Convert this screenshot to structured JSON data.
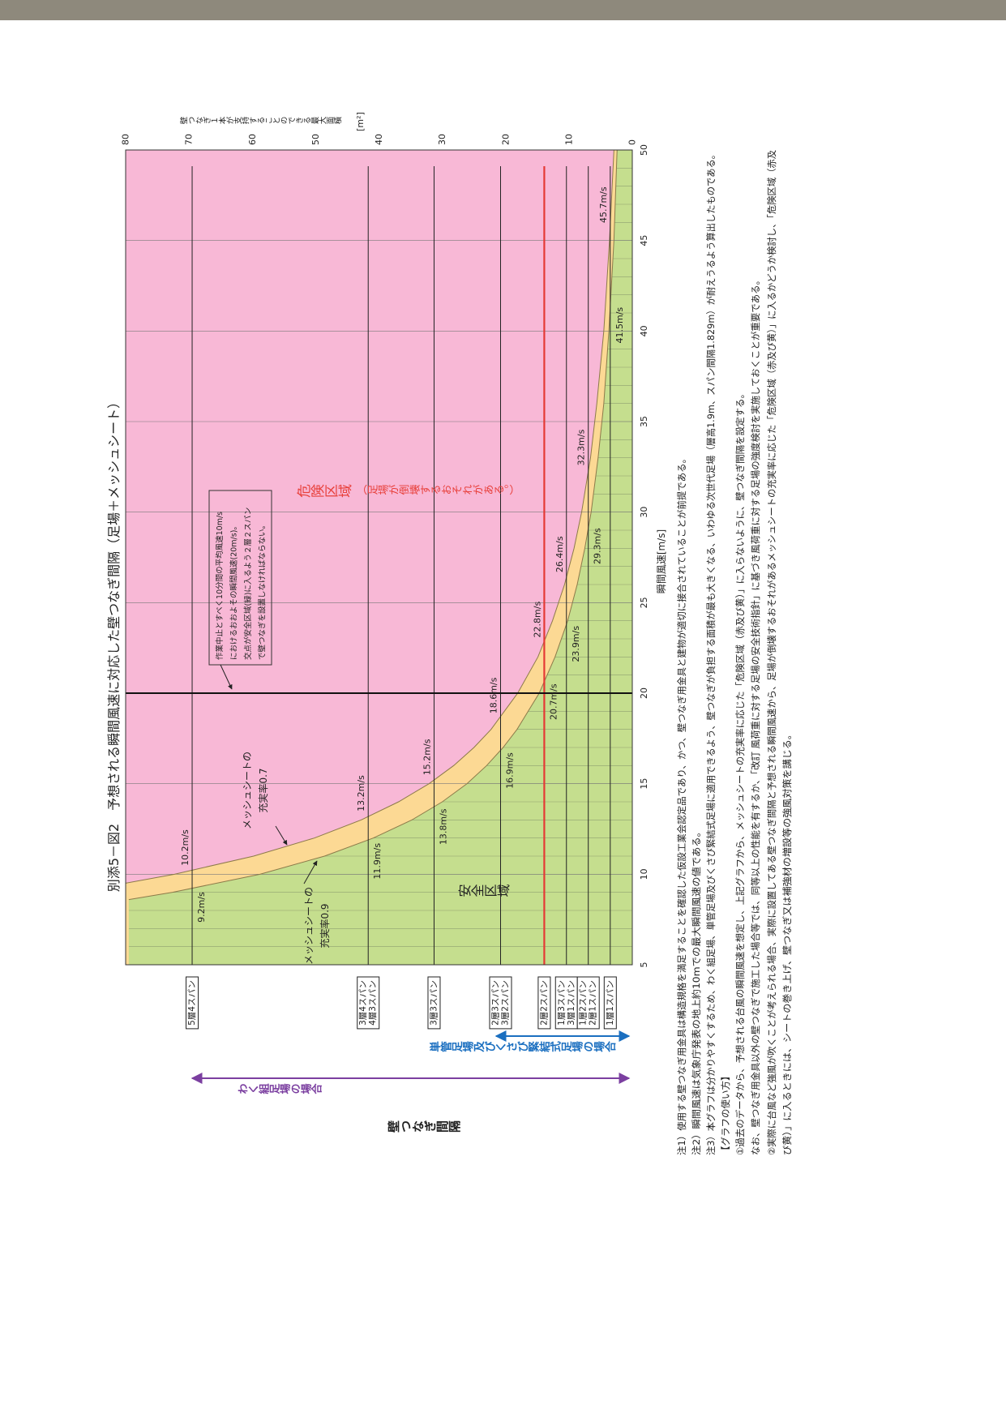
{
  "title": "別添5－図2　予想される瞬間風速に対応した壁つなぎ間隔（足場＋メッシュシート）",
  "chart_data": {
    "type": "line",
    "x_label": "瞬間風速[m/s]",
    "y_label": "壁つなぎ１本が支持することのできる最大面積",
    "y_unit": "[m²]",
    "xlim": [
      5,
      50
    ],
    "xticks": [
      5,
      10,
      15,
      20,
      25,
      30,
      35,
      40,
      45,
      50
    ],
    "minor_xticks": [
      5,
      6,
      7,
      8,
      9,
      10,
      11,
      12,
      13,
      14,
      15,
      16,
      17,
      18,
      19,
      20,
      21,
      22,
      23,
      24,
      25,
      26,
      27,
      28,
      29,
      30,
      31,
      32,
      33,
      34,
      35,
      36,
      37,
      38,
      39,
      40,
      41,
      42,
      43,
      44,
      45,
      46,
      47,
      48,
      49,
      50
    ],
    "ylim": [
      0,
      80
    ],
    "yticks": [
      0,
      10,
      20,
      30,
      40,
      50,
      60,
      70,
      80
    ],
    "background_color": "#f8b8d6",
    "reference_x": 20,
    "series": [
      {
        "label_lines": [
          "メッシュシートの",
          "充実率0.7"
        ],
        "color": "#fcd994",
        "x": [
          9.5,
          10,
          11,
          12,
          13,
          14,
          15,
          16,
          17,
          18,
          20,
          22,
          24,
          26,
          28,
          30,
          33,
          36,
          40,
          45,
          50
        ],
        "values": [
          80.1,
          72.3,
          59.8,
          50.2,
          42.8,
          36.9,
          32.1,
          28.2,
          25.0,
          22.3,
          18.1,
          14.9,
          12.6,
          10.7,
          9.2,
          8.0,
          6.6,
          5.6,
          4.5,
          3.6,
          2.9
        ],
        "crossings": [
          {
            "x": 10.2,
            "y": 69.5,
            "label": "10.2m/s"
          },
          {
            "x": 13.2,
            "y": 41.7,
            "label": "13.2m/s"
          },
          {
            "x": 15.2,
            "y": 31.3,
            "label": "15.2m/s"
          },
          {
            "x": 18.6,
            "y": 20.8,
            "label": "18.6m/s"
          },
          {
            "x": 22.8,
            "y": 13.9,
            "label": "22.8m/s"
          },
          {
            "x": 26.4,
            "y": 10.4,
            "label": "26.4m/s"
          },
          {
            "x": 32.3,
            "y": 6.95,
            "label": "32.3m/s"
          },
          {
            "x": 45.7,
            "y": 3.48,
            "label": "45.7m/s"
          }
        ]
      },
      {
        "label_lines": [
          "メッシュシートの",
          "充実率0.9"
        ],
        "color": "#c5de8e",
        "x": [
          8.6,
          9,
          10,
          11,
          12,
          13,
          14,
          15,
          16,
          17,
          18,
          20,
          22,
          24,
          26,
          28,
          30,
          33,
          36,
          40,
          45,
          50
        ],
        "values": [
          79.5,
          72.6,
          58.8,
          48.6,
          40.9,
          34.8,
          30.0,
          26.1,
          23.0,
          20.4,
          18.2,
          14.7,
          12.2,
          10.2,
          8.7,
          7.5,
          6.5,
          5.4,
          4.5,
          3.7,
          2.9,
          2.4
        ],
        "crossings": [
          {
            "x": 9.2,
            "y": 69.5,
            "label": "9.2m/s"
          },
          {
            "x": 11.9,
            "y": 41.7,
            "label": "11.9m/s"
          },
          {
            "x": 13.8,
            "y": 31.3,
            "label": "13.8m/s"
          },
          {
            "x": 16.9,
            "y": 20.8,
            "label": "16.9m/s"
          },
          {
            "x": 20.7,
            "y": 13.9,
            "label": "20.7m/s"
          },
          {
            "x": 23.9,
            "y": 10.4,
            "label": "23.9m/s"
          },
          {
            "x": 29.3,
            "y": 6.95,
            "label": "29.3m/s"
          },
          {
            "x": 41.5,
            "y": 3.48,
            "label": "41.5m/s"
          }
        ]
      }
    ],
    "span_lines": [
      {
        "value": 69.5,
        "labels": [
          "5層4スパン"
        ],
        "color": "#222222"
      },
      {
        "value": 41.7,
        "labels": [
          "3層4スパン",
          "4層3スパン"
        ],
        "color": "#222222"
      },
      {
        "value": 31.3,
        "labels": [
          "3層3スパン"
        ],
        "color": "#222222"
      },
      {
        "value": 20.8,
        "labels": [
          "2層3スパン",
          "3層2スパン"
        ],
        "color": "#222222"
      },
      {
        "value": 13.9,
        "labels": [
          "2層2スパン"
        ],
        "color": "#e53935"
      },
      {
        "value": 10.4,
        "labels": [
          "1層3スパン",
          "3層1スパン"
        ],
        "color": "#222222"
      },
      {
        "value": 6.95,
        "labels": [
          "1層2スパン",
          "2層1スパン"
        ],
        "color": "#222222"
      },
      {
        "value": 3.48,
        "labels": [
          "1層1スパン"
        ],
        "color": "#222222"
      }
    ],
    "annotations": {
      "box_lines": [
        "作業中止とすべく10分間の平均風速10m/s",
        "におけるおおよその瞬間風速(20m/s)。",
        "交点が安全区域(緑)に入るよう２層２スパン",
        "で壁つなぎを設置しなければならない。"
      ],
      "danger": "危険区域",
      "danger_note": "（足場が倒壊するおそれがある。）",
      "safe": "安全区域"
    }
  },
  "side_labels": {
    "interval": "壁つなぎ間隔",
    "frame": "わく組足場の場合",
    "tube": "単管足場及びくさび緊結式足場の場合"
  },
  "notes": [
    "注1）使用する壁つなぎ用金具は構造規格を満足することを確認した仮設工業会認定品であり、かつ、壁つなぎ用金具と建物が適切に接合されていることが前提である。",
    "注2）瞬間風速は気象庁発表の地上約10mでの最大瞬間風速の値である。",
    "注3）本グラフは分かりやすくするため、わく組足場、単管足場及びくさび緊結式足場に適用できるよう、壁つなぎが負担する面積が最も大きくなる、いわゆる次世代足場（層高1.9m、スパン間隔1.829m）が耐えうるよう算出したものである。",
    "【グラフの使い方】",
    "①過去のデータから、予想される台風の瞬間風速を想定し、上記グラフから、メッシュシートの充実率に応じた「危険区域（赤及び黄）」に入らないように、壁つなぎ間隔を設定する。",
    "なお、壁つなぎ用金具以外の壁つなぎで施工した場合等では、同等以上の性能を有するか、「改訂 風荷重に対する足場の安全技術指針」に基づき風荷重に対する足場の強度検討を実施しておくことが重要である。",
    "②実際に台風など強風が吹くことが考えられる場合、実際に設置してある壁つなぎ間隔と予想される瞬間風速から、足場が倒壊するおそれがあるメッシュシートの充実率に応じた「危険区域（赤及び黄）」に入るかどうか検討し、「危険区域（赤及",
    "び黄）」に入るときには、シートの巻き上げ、壁つなぎ又は補強材の増設等の強風対策を講じる。"
  ]
}
